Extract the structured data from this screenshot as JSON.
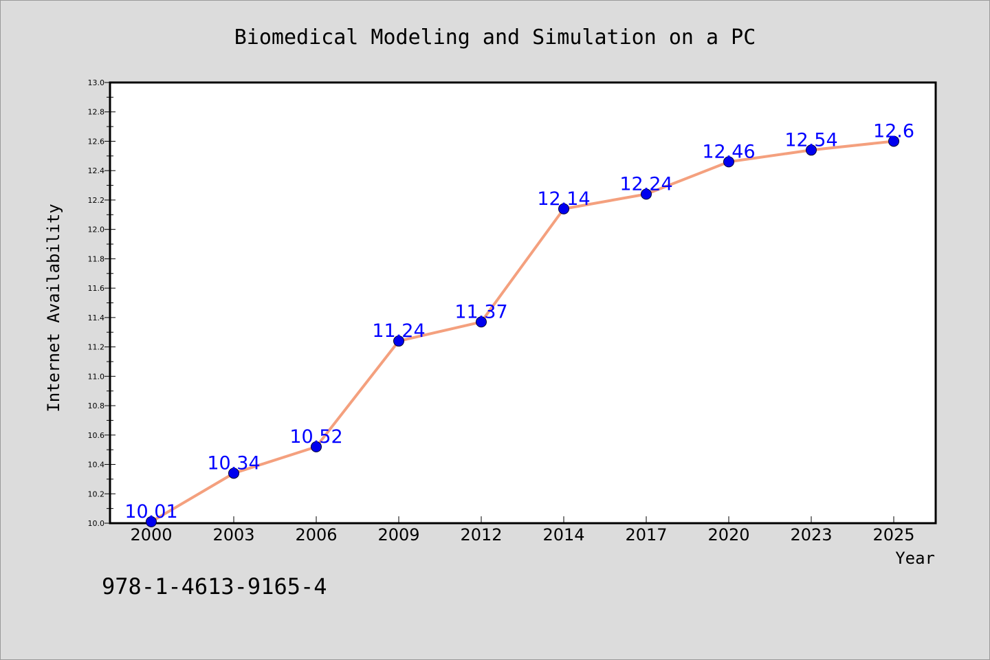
{
  "footer": {
    "isbn": "978-1-4613-9165-4"
  },
  "colors": {
    "background": "#dcdcdc",
    "plot_bg": "#ffffff",
    "line": "#f4a07e",
    "marker": "#0000ee",
    "label": "#0000ff"
  },
  "chart_data": {
    "type": "line",
    "title": "Biomedical Modeling and Simulation on a PC",
    "xlabel": "Year",
    "ylabel": "Internet Availability",
    "categories": [
      "2000",
      "2003",
      "2006",
      "2009",
      "2012",
      "2014",
      "2017",
      "2020",
      "2023",
      "2025"
    ],
    "series": [
      {
        "values": [
          10.01,
          10.34,
          10.52,
          11.24,
          11.37,
          12.14,
          12.24,
          12.46,
          12.54,
          12.6
        ]
      }
    ],
    "value_labels": [
      "10.01",
      "10.34",
      "10.52",
      "11.24",
      "11.37",
      "12.14",
      "12.24",
      "12.46",
      "12.54",
      "12.6"
    ],
    "ylim": [
      10.0,
      13.0
    ],
    "yticks": [
      "10.0",
      "10.2",
      "10.4",
      "10.6",
      "10.8",
      "11.0",
      "11.2",
      "11.4",
      "11.6",
      "11.8",
      "12.0",
      "12.2",
      "12.4",
      "12.6",
      "12.8",
      "13.0"
    ],
    "grid": false,
    "legend": "none",
    "markers": true
  }
}
